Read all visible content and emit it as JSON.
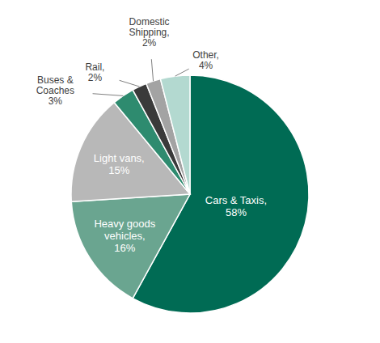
{
  "chart_data": {
    "type": "pie",
    "categories": [
      "Cars & Taxis,",
      "Heavy goods vehicles,",
      "Light vans,",
      "Buses & Coaches",
      "Rail,",
      "Domestic Shipping,",
      "Other,"
    ],
    "values": [
      58,
      16,
      15,
      3,
      2,
      2,
      4
    ],
    "value_labels": [
      "58%",
      "16%",
      "15%",
      "3%",
      "2%",
      "2%",
      "4%"
    ],
    "colors": [
      "#006b54",
      "#6aa590",
      "#b8b8b8",
      "#2e8b6f",
      "#3a3a3a",
      "#a3a3a3",
      "#b3d9d0"
    ],
    "data_labels": true
  }
}
